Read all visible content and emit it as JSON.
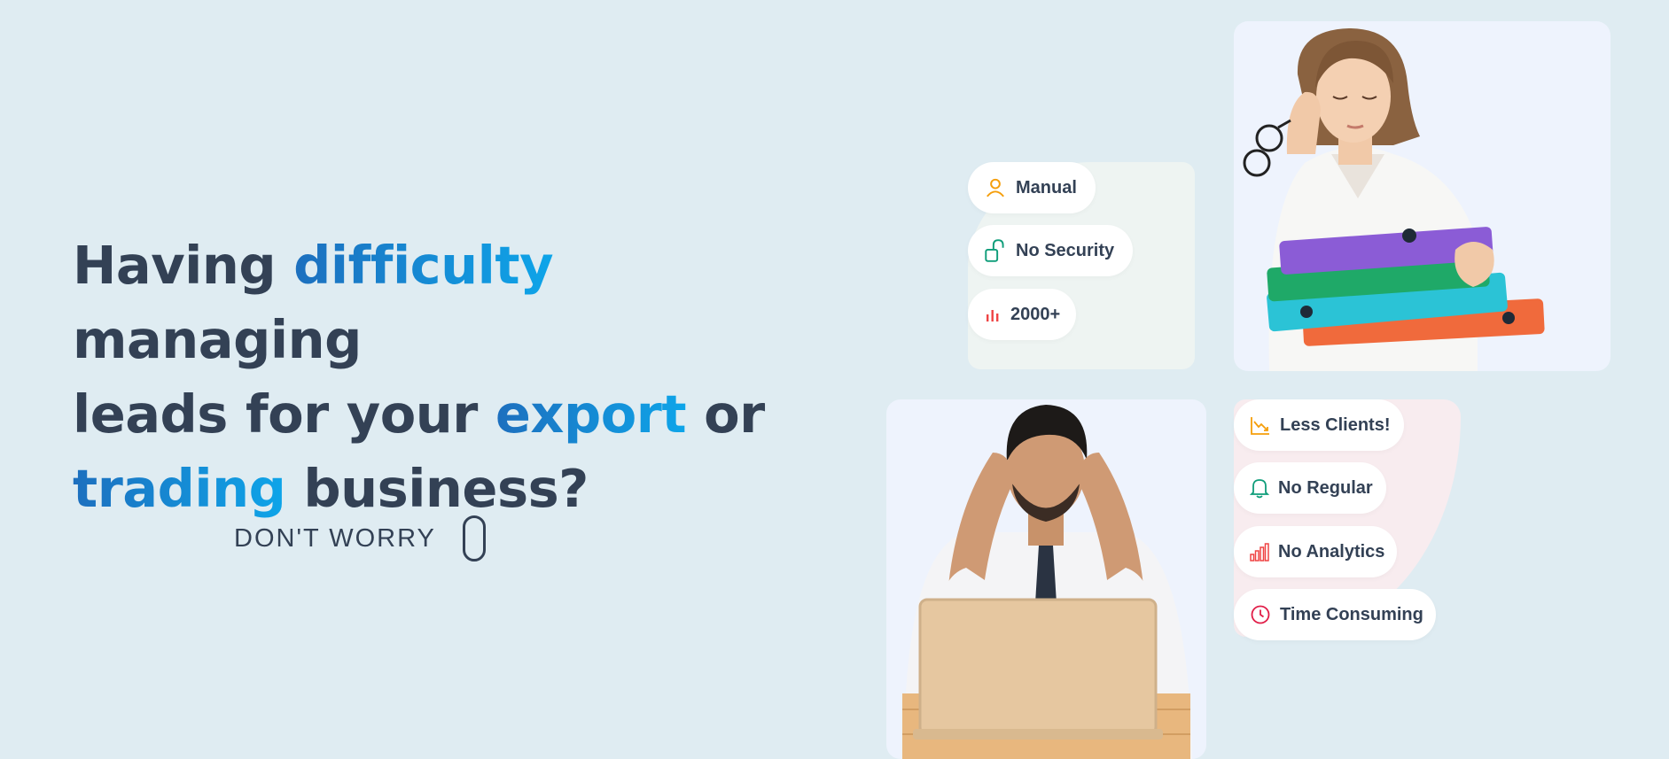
{
  "hero": {
    "line1_a": "Having ",
    "line1_hl": "difficulty",
    "line1_b": " managing",
    "line2_a": "leads for your ",
    "line2_hl": "export",
    "line2_b": " or",
    "line3_hl": "trading",
    "line3_b": " business?"
  },
  "cta": {
    "label": "DON'T WORRY"
  },
  "top_pills": [
    {
      "label": "Manual",
      "icon": "user-icon",
      "color": "#f59e0b"
    },
    {
      "label": "No Security",
      "icon": "unlock-icon",
      "color": "#0f9d7a"
    },
    {
      "label": "2000+",
      "icon": "bar-chart-icon",
      "color": "#ef4444"
    }
  ],
  "bottom_pills": [
    {
      "label": "Less Clients!",
      "icon": "trending-down-icon",
      "color": "#f59e0b"
    },
    {
      "label": "No Regular",
      "icon": "bell-icon",
      "color": "#0f9d7a"
    },
    {
      "label": "No Analytics",
      "icon": "signal-bars-icon",
      "color": "#ef4444"
    },
    {
      "label": "Time Consuming",
      "icon": "clock-icon",
      "color": "#e11d48"
    }
  ],
  "colors": {
    "background": "#dfecf2",
    "text": "#334155",
    "highlight_start": "#1d6fbe",
    "highlight_end": "#0ea5e9"
  }
}
